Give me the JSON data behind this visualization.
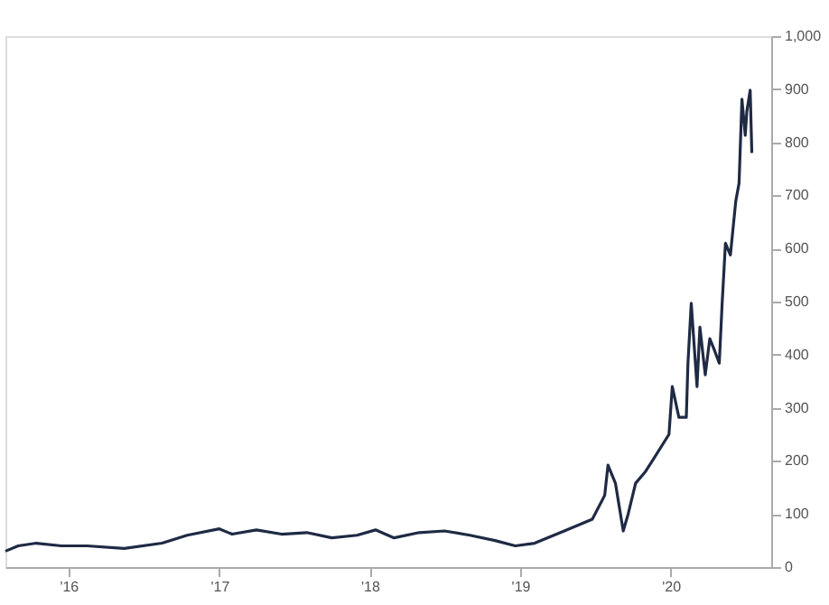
{
  "chart_data": {
    "type": "line",
    "x": [
      "2015-08-01",
      "2015-09-01",
      "2015-10-15",
      "2015-12-15",
      "2016-02-15",
      "2016-05-15",
      "2016-08-15",
      "2016-10-15",
      "2017-01-01",
      "2017-02-01",
      "2017-04-01",
      "2017-06-01",
      "2017-08-01",
      "2017-10-01",
      "2017-12-01",
      "2018-01-15",
      "2018-03-01",
      "2018-05-01",
      "2018-07-01",
      "2018-09-01",
      "2018-11-01",
      "2018-12-20",
      "2019-02-05",
      "2019-04-18",
      "2019-06-25",
      "2019-07-25",
      "2019-08-02",
      "2019-08-20",
      "2019-09-08",
      "2019-09-20",
      "2019-10-08",
      "2019-11-01",
      "2019-11-20",
      "2019-12-28",
      "2020-01-05",
      "2020-01-21",
      "2020-02-08",
      "2020-02-12",
      "2020-02-20",
      "2020-03-05",
      "2020-03-12",
      "2020-03-25",
      "2020-04-05",
      "2020-04-17",
      "2020-04-28",
      "2020-05-05",
      "2020-05-13",
      "2020-05-25",
      "2020-06-07",
      "2020-06-15",
      "2020-06-22",
      "2020-06-30",
      "2020-07-04",
      "2020-07-12",
      "2020-07-16"
    ],
    "series": [
      {
        "color": "#1f2a44",
        "values": [
          30,
          40,
          45,
          40,
          40,
          35,
          45,
          60,
          72,
          62,
          70,
          62,
          65,
          55,
          60,
          70,
          55,
          65,
          68,
          60,
          50,
          40,
          45,
          68,
          90,
          135,
          192,
          158,
          68,
          100,
          158,
          180,
          203,
          250,
          340,
          282,
          282,
          384,
          497,
          340,
          452,
          362,
          430,
          407,
          384,
          497,
          610,
          588,
          689,
          723,
          881,
          813,
          859,
          898,
          780
        ]
      }
    ],
    "xlim": [
      "2015-08-01",
      "2020-09-01"
    ],
    "xticks": [
      {
        "value": "2016-01-01",
        "label": "'16"
      },
      {
        "value": "2017-01-01",
        "label": "'17"
      },
      {
        "value": "2018-01-01",
        "label": "'18"
      },
      {
        "value": "2019-01-01",
        "label": "'19"
      },
      {
        "value": "2020-01-01",
        "label": "'20"
      }
    ],
    "ylim": [
      0,
      1000
    ],
    "yticks": [
      0,
      100,
      200,
      300,
      400,
      500,
      600,
      700,
      800,
      900,
      {
        "value": 1000,
        "label": "1,000"
      }
    ],
    "grid": false,
    "legend": false,
    "marker": "none",
    "line_style": "solid"
  }
}
